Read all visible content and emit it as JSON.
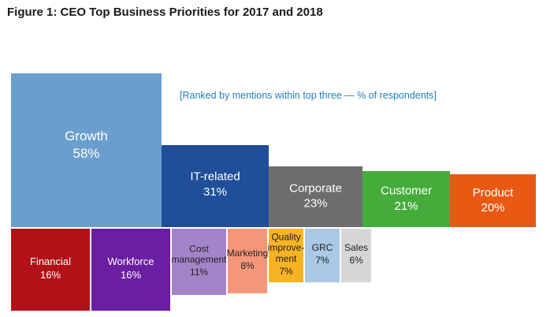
{
  "figure_title": "Figure 1: CEO Top Business Priorities for 2017 and 2018",
  "chart_data": {
    "type": "treemap",
    "title": "Figure 1: CEO Top Business Priorities for 2017 and 2018",
    "subtitle": "[Ranked by mentions within top three — % of respondents]",
    "unit": "%",
    "series": [
      {
        "name": "Growth",
        "value": 58,
        "display": "58%",
        "color": "#6a9fcd",
        "text": "light"
      },
      {
        "name": "IT-related",
        "value": 31,
        "display": "31%",
        "color": "#1f4e9a",
        "text": "light"
      },
      {
        "name": "Corporate",
        "value": 23,
        "display": "23%",
        "color": "#6d6d6d",
        "text": "light"
      },
      {
        "name": "Customer",
        "value": 21,
        "display": "21%",
        "color": "#45ac3c",
        "text": "light"
      },
      {
        "name": "Product",
        "value": 20,
        "display": "20%",
        "color": "#e85a14",
        "text": "light"
      },
      {
        "name": "Financial",
        "value": 16,
        "display": "16%",
        "color": "#b01218",
        "text": "light"
      },
      {
        "name": "Workforce",
        "value": 16,
        "display": "16%",
        "color": "#6a1fa2",
        "text": "light"
      },
      {
        "name": "Cost management",
        "value": 11,
        "display": "11%",
        "color": "#a484c9",
        "text": "dark"
      },
      {
        "name": "Marketing",
        "value": 8,
        "display": "8%",
        "color": "#f5967a",
        "text": "dark"
      },
      {
        "name": "Quality improvement",
        "value": 7,
        "display": "7%",
        "color": "#f8b325",
        "text": "dark"
      },
      {
        "name": "GRC",
        "value": 7,
        "display": "7%",
        "color": "#a9c9e4",
        "text": "dark"
      },
      {
        "name": "Sales",
        "value": 6,
        "display": "6%",
        "color": "#d6d6d6",
        "text": "dark"
      }
    ]
  }
}
